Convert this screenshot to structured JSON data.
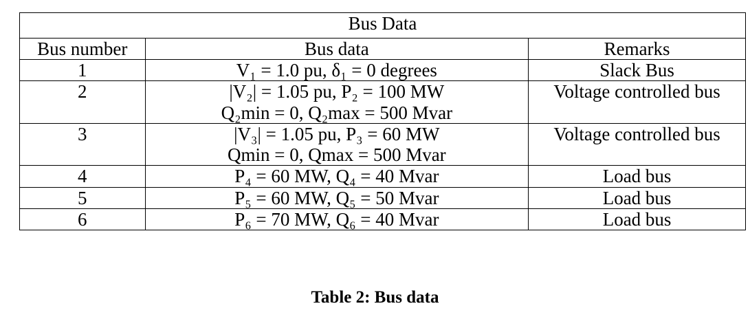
{
  "table": {
    "title": "Bus Data",
    "headers": [
      "Bus number",
      "Bus data",
      "Remarks"
    ],
    "rows": [
      {
        "number": "1",
        "data": [
          "V₁ = 1.0 pu,   δ₁ = 0 degrees"
        ],
        "remark": "Slack Bus"
      },
      {
        "number": "2",
        "data": [
          "|V₂| = 1.05 pu,   P₂ = 100 MW",
          "Q₂min = 0,  Q₂max = 500 Mvar"
        ],
        "remark": "Voltage controlled bus"
      },
      {
        "number": "3",
        "data": [
          "|V₃| = 1.05 pu,   P₃ = 60 MW",
          "Qmin = 0,   Qmax = 500 Mvar"
        ],
        "remark": "Voltage controlled bus"
      },
      {
        "number": "4",
        "data": [
          "P₄ = 60 MW,   Q₄ = 40 Mvar"
        ],
        "remark": "Load bus"
      },
      {
        "number": "5",
        "data": [
          "P₅ = 60 MW,   Q₅ = 50 Mvar"
        ],
        "remark": "Load bus"
      },
      {
        "number": "6",
        "data": [
          "P₆ = 70 MW,   Q₆ = 40 Mvar"
        ],
        "remark": "Load bus"
      }
    ]
  },
  "caption": "Table 2: Bus data"
}
